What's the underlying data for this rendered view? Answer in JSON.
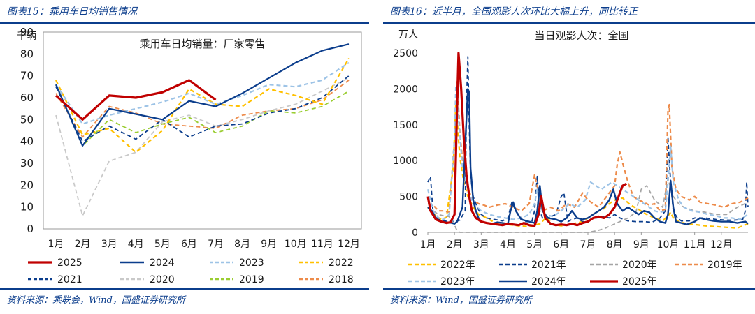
{
  "left": {
    "figure_title": "图表15：乘用车日均销售情况",
    "source": "资料来源：乘联会，Wind，国盛证券研究所",
    "chart_data": {
      "type": "line",
      "title": "乘用车日均销量：厂家零售",
      "ylabel": "千辆",
      "xlabel": "",
      "ylim": [
        0,
        90
      ],
      "yticks": [
        0,
        10,
        20,
        30,
        40,
        50,
        60,
        70,
        80,
        90
      ],
      "categories": [
        "1月",
        "2月",
        "3月",
        "4月",
        "5月",
        "6月",
        "7月",
        "8月",
        "9月",
        "10月",
        "11月",
        "12月"
      ],
      "grid": false,
      "legend_position": "bottom",
      "series": [
        {
          "name": "2025",
          "color": "#c00000",
          "dash": "solid",
          "width": 3.2,
          "values": [
            61,
            50,
            61,
            60,
            62.5,
            68,
            59,
            null,
            null,
            null,
            null,
            null
          ]
        },
        {
          "name": "2024",
          "color": "#0b3d8c",
          "dash": "solid",
          "width": 2.2,
          "values": [
            66,
            38,
            55,
            52.5,
            50,
            58.5,
            56,
            62,
            69,
            76,
            81.5,
            84.5
          ]
        },
        {
          "name": "2023",
          "color": "#9dc3e6",
          "dash": "dash",
          "width": 2.2,
          "values": [
            66,
            48,
            52,
            55,
            58,
            62,
            57,
            61,
            66,
            65,
            68,
            76
          ]
        },
        {
          "name": "2022",
          "color": "#ffc000",
          "dash": "dash",
          "width": 2.2,
          "values": [
            68,
            43,
            46,
            35,
            45,
            64,
            57,
            56,
            64,
            61,
            57,
            78
          ]
        },
        {
          "name": "2021",
          "color": "#0b3d8c",
          "dash": "dash",
          "width": 1.8,
          "values": [
            65,
            40,
            47,
            41,
            50,
            42,
            47,
            48,
            53,
            55,
            60,
            70
          ]
        },
        {
          "name": "2020",
          "color": "#c9c9c9",
          "dash": "dash",
          "width": 1.8,
          "values": [
            52,
            6,
            31,
            35,
            49,
            52,
            47,
            50,
            54,
            57,
            63,
            69
          ]
        },
        {
          "name": "2019",
          "color": "#9acd32",
          "dash": "dash",
          "width": 1.8,
          "values": [
            66,
            38,
            50,
            44,
            48,
            51,
            44,
            47,
            54,
            53,
            56,
            63
          ]
        },
        {
          "name": "2018",
          "color": "#ed8b4a",
          "dash": "dash",
          "width": 1.8,
          "values": [
            62,
            42,
            56,
            53,
            48,
            47,
            46,
            52,
            54,
            55,
            59,
            68
          ]
        }
      ]
    }
  },
  "right": {
    "figure_title": "图表16：近半月，全国观影人次环比大幅上升，同比转正",
    "source": "资料来源：Wind，国盛证券研究所",
    "chart_data": {
      "type": "line",
      "title": "当日观影人次：全国",
      "ylabel": "万人",
      "xlabel": "",
      "ylim": [
        0,
        2500
      ],
      "yticks": [
        0,
        500,
        1000,
        1500,
        2000,
        2500
      ],
      "x_tick_labels": [
        "1月",
        "2月",
        "3月",
        "4月",
        "5月",
        "6月",
        "7月",
        "8月",
        "9月",
        "10月",
        "11月",
        "12月"
      ],
      "grid": false,
      "legend_position": "bottom",
      "series": [
        {
          "name": "2022年",
          "color": "#ffc000",
          "dash": "dash",
          "width": 2.2,
          "x": [
            1.0,
            1.1,
            1.3,
            1.5,
            1.7,
            1.95,
            2.05,
            2.2,
            2.35,
            2.5,
            2.7,
            2.9,
            3.1,
            3.3,
            3.6,
            4.0,
            4.4,
            4.8,
            5.2,
            5.45,
            5.7,
            6.0,
            6.3,
            6.7,
            7.0,
            7.3,
            7.6,
            7.8,
            8.0,
            8.3,
            8.6,
            8.9,
            9.2,
            9.5,
            9.8,
            10.0,
            10.1,
            10.2,
            10.4,
            10.7,
            11.0,
            11.4,
            11.8,
            12.2,
            12.6,
            13.0
          ],
          "y": [
            350,
            300,
            230,
            180,
            210,
            900,
            1800,
            1050,
            700,
            500,
            350,
            250,
            220,
            180,
            120,
            110,
            90,
            80,
            120,
            210,
            110,
            90,
            110,
            140,
            200,
            280,
            330,
            400,
            450,
            480,
            380,
            320,
            250,
            200,
            160,
            230,
            280,
            200,
            150,
            120,
            110,
            90,
            80,
            70,
            60,
            120
          ]
        },
        {
          "name": "2021年",
          "color": "#0b3d8c",
          "dash": "dash",
          "width": 1.8,
          "x": [
            1.0,
            1.1,
            1.2,
            1.4,
            1.6,
            1.8,
            2.0,
            2.2,
            2.4,
            2.45,
            2.5,
            2.55,
            2.6,
            2.7,
            2.85,
            3.0,
            3.2,
            3.5,
            3.8,
            4.0,
            4.15,
            4.3,
            4.6,
            4.9,
            5.0,
            5.1,
            5.2,
            5.3,
            5.5,
            5.8,
            6.0,
            6.1,
            6.25,
            6.4,
            6.6,
            6.8,
            7.0,
            7.2,
            7.4,
            7.6,
            7.8,
            8.0,
            8.2,
            8.5,
            8.8,
            9.1,
            9.4,
            9.7,
            9.9,
            10.0,
            10.1,
            10.2,
            10.35,
            10.5,
            10.8,
            11.0,
            11.4,
            11.8,
            12.2,
            12.5,
            12.8,
            12.9,
            12.95,
            13.0
          ],
          "y": [
            700,
            780,
            250,
            180,
            160,
            160,
            150,
            170,
            300,
            1800,
            2450,
            1500,
            800,
            500,
            350,
            250,
            200,
            180,
            160,
            200,
            420,
            300,
            150,
            150,
            300,
            780,
            300,
            200,
            200,
            250,
            500,
            550,
            150,
            180,
            200,
            150,
            160,
            200,
            200,
            220,
            200,
            250,
            200,
            160,
            150,
            150,
            140,
            200,
            300,
            1320,
            700,
            300,
            200,
            160,
            160,
            200,
            200,
            180,
            170,
            170,
            180,
            300,
            700,
            350
          ]
        },
        {
          "name": "2020年",
          "color": "#a5a5a5",
          "dash": "dash",
          "width": 1.8,
          "x": [
            1.0,
            1.2,
            1.4,
            1.6,
            1.8,
            2.0,
            2.1,
            2.2,
            2.3,
            2.6,
            3.0,
            4.0,
            5.0,
            6.0,
            7.0,
            7.3,
            7.6,
            7.9,
            8.2,
            8.5,
            8.8,
            9.0,
            9.2,
            9.5,
            9.8,
            10.0,
            10.2,
            10.4,
            10.6,
            11.0,
            11.4,
            11.8,
            12.2,
            12.6,
            13.0
          ],
          "y": [
            350,
            300,
            250,
            230,
            220,
            100,
            20,
            0,
            0,
            0,
            0,
            0,
            0,
            0,
            0,
            20,
            50,
            100,
            150,
            200,
            280,
            600,
            650,
            450,
            350,
            750,
            500,
            400,
            350,
            300,
            280,
            250,
            250,
            350,
            420
          ]
        },
        {
          "name": "2019年",
          "color": "#ed8b4a",
          "dash": "dash",
          "width": 2.2,
          "x": [
            1.0,
            1.2,
            1.4,
            1.6,
            1.8,
            2.0,
            2.1,
            2.2,
            2.35,
            2.5,
            2.7,
            2.9,
            3.1,
            3.3,
            3.6,
            3.9,
            4.2,
            4.5,
            4.8,
            5.0,
            5.1,
            5.2,
            5.3,
            5.6,
            5.9,
            6.2,
            6.5,
            6.8,
            7.0,
            7.2,
            7.4,
            7.6,
            7.8,
            8.0,
            8.1,
            8.2,
            8.35,
            8.5,
            8.7,
            8.9,
            9.1,
            9.3,
            9.5,
            9.7,
            9.9,
            10.0,
            10.05,
            10.15,
            10.3,
            10.5,
            10.8,
            11.0,
            11.2,
            11.5,
            11.8,
            12.1,
            12.4,
            12.7,
            13.0
          ],
          "y": [
            400,
            380,
            300,
            300,
            280,
            1300,
            2100,
            1400,
            800,
            600,
            450,
            400,
            380,
            350,
            380,
            400,
            350,
            300,
            400,
            800,
            650,
            400,
            300,
            350,
            300,
            400,
            350,
            550,
            450,
            400,
            350,
            450,
            550,
            650,
            950,
            1120,
            900,
            700,
            500,
            450,
            420,
            380,
            400,
            300,
            320,
            1700,
            1780,
            900,
            600,
            500,
            450,
            500,
            420,
            400,
            380,
            350,
            400,
            420,
            480
          ]
        },
        {
          "name": "2023年",
          "color": "#9dc3e6",
          "dash": "dash",
          "width": 2.2,
          "x": [
            1.0,
            1.2,
            1.4,
            1.6,
            1.8,
            2.0,
            2.05,
            2.15,
            2.3,
            2.5,
            2.7,
            3.0,
            3.3,
            3.6,
            3.9,
            4.2,
            4.5,
            4.8,
            5.0,
            5.1,
            5.2,
            5.4,
            5.7,
            6.0,
            6.3,
            6.6,
            6.9,
            7.1,
            7.3,
            7.5,
            7.7,
            7.9,
            8.1,
            8.3,
            8.5,
            8.7,
            8.9,
            9.1,
            9.3,
            9.5,
            9.7,
            9.9,
            10.0,
            10.1,
            10.2,
            10.4,
            10.6,
            10.9,
            11.2,
            11.5,
            11.8,
            12.1,
            12.4,
            12.7,
            13.0
          ],
          "y": [
            600,
            300,
            200,
            180,
            250,
            1300,
            2050,
            1600,
            900,
            600,
            400,
            300,
            250,
            220,
            200,
            180,
            200,
            250,
            400,
            600,
            350,
            250,
            220,
            300,
            400,
            350,
            450,
            700,
            650,
            600,
            650,
            700,
            650,
            600,
            550,
            500,
            450,
            400,
            350,
            300,
            280,
            300,
            700,
            1200,
            700,
            450,
            350,
            300,
            280,
            250,
            230,
            200,
            200,
            180,
            250
          ]
        },
        {
          "name": "2024年",
          "color": "#0b3d8c",
          "dash": "solid",
          "width": 2.4,
          "x": [
            1.0,
            1.15,
            1.3,
            1.5,
            1.7,
            1.9,
            2.0,
            2.1,
            2.2,
            2.3,
            2.4,
            2.5,
            2.55,
            2.6,
            2.7,
            2.8,
            2.9,
            3.0,
            3.2,
            3.4,
            3.6,
            3.8,
            4.0,
            4.1,
            4.2,
            4.3,
            4.5,
            4.8,
            5.0,
            5.1,
            5.2,
            5.3,
            5.5,
            5.8,
            6.0,
            6.2,
            6.4,
            6.6,
            6.8,
            7.0,
            7.2,
            7.4,
            7.6,
            7.8,
            7.95,
            8.1,
            8.3,
            8.5,
            8.7,
            8.9,
            9.1,
            9.3,
            9.5,
            9.7,
            9.9,
            10.0,
            10.1,
            10.2,
            10.3,
            10.5,
            10.7,
            11.0,
            11.2,
            11.4,
            11.7,
            12.0,
            12.3,
            12.6,
            12.9,
            13.0
          ],
          "y": [
            350,
            300,
            200,
            150,
            140,
            130,
            120,
            150,
            250,
            350,
            1200,
            2000,
            1950,
            900,
            450,
            300,
            200,
            150,
            130,
            120,
            140,
            130,
            120,
            300,
            420,
            300,
            180,
            150,
            130,
            300,
            650,
            300,
            200,
            180,
            150,
            200,
            300,
            200,
            180,
            200,
            250,
            300,
            350,
            450,
            600,
            400,
            300,
            350,
            300,
            250,
            300,
            280,
            200,
            150,
            130,
            250,
            720,
            350,
            150,
            130,
            110,
            150,
            200,
            180,
            160,
            150,
            150,
            130,
            150,
            120
          ]
        },
        {
          "name": "2025年",
          "color": "#c00000",
          "dash": "solid",
          "width": 3.2,
          "x": [
            1.0,
            1.1,
            1.3,
            1.5,
            1.7,
            1.85,
            2.0,
            2.08,
            2.15,
            2.25,
            2.35,
            2.45,
            2.55,
            2.65,
            2.8,
            3.0,
            3.2,
            3.4,
            3.6,
            3.8,
            4.0,
            4.2,
            4.4,
            4.6,
            4.8,
            5.0,
            5.15,
            5.25,
            5.4,
            5.6,
            5.8,
            6.0,
            6.2,
            6.4,
            6.6,
            6.8,
            7.0,
            7.2,
            7.4,
            7.6,
            7.8,
            8.0,
            8.15,
            8.3,
            8.45
          ],
          "y": [
            500,
            300,
            180,
            150,
            130,
            140,
            250,
            1500,
            2500,
            2000,
            1300,
            800,
            500,
            300,
            200,
            150,
            130,
            120,
            110,
            100,
            120,
            110,
            100,
            130,
            100,
            90,
            250,
            500,
            200,
            120,
            100,
            110,
            100,
            120,
            100,
            130,
            150,
            200,
            220,
            200,
            250,
            350,
            500,
            650,
            680
          ]
        }
      ]
    }
  }
}
